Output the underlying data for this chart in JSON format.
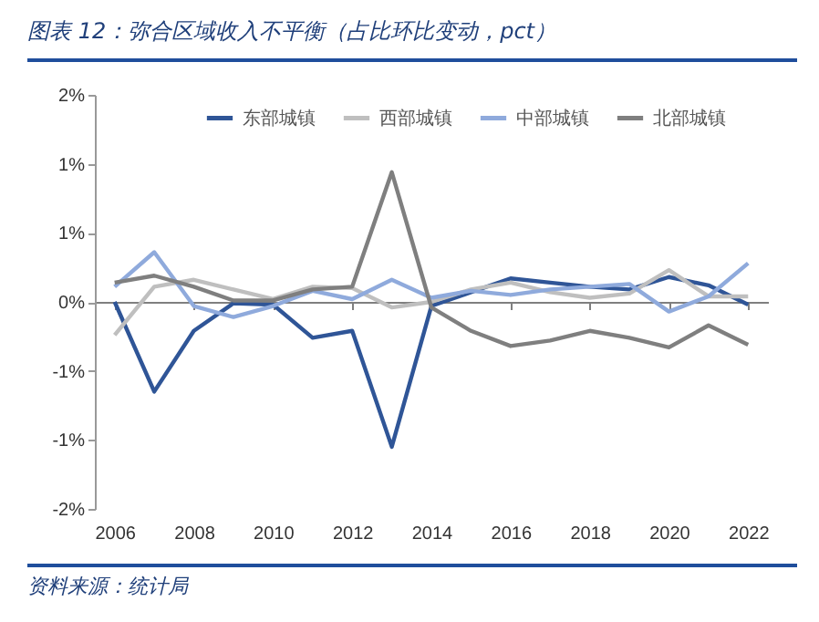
{
  "chart_data": {
    "type": "line",
    "title": "图表 12：弥合区域收入不平衡（占比环比变动，pct）",
    "annotations": [
      "资料来源：统计局"
    ],
    "x": [
      2006,
      2007,
      2008,
      2009,
      2010,
      2011,
      2012,
      2013,
      2014,
      2015,
      2016,
      2017,
      2018,
      2019,
      2020,
      2021,
      2022
    ],
    "xlim": [
      2005.5,
      2022.5
    ],
    "xticks": [
      2006,
      2008,
      2010,
      2012,
      2014,
      2016,
      2018,
      2020,
      2022
    ],
    "ylim": [
      -1.5,
      1.5
    ],
    "yticks": [
      {
        "value": 1.5,
        "label": "2%"
      },
      {
        "value": 1,
        "label": "1%"
      },
      {
        "value": 0.5,
        "label": "1%"
      },
      {
        "value": 0,
        "label": "0%"
      },
      {
        "value": -0.5,
        "label": "-1%"
      },
      {
        "value": -1,
        "label": "-1%"
      },
      {
        "value": -1.5,
        "label": "-2%"
      }
    ],
    "legend": "top",
    "series": [
      {
        "name": "东部城镇",
        "color": "#2f5597",
        "values": [
          0.0,
          -0.65,
          -0.21,
          -0.01,
          -0.02,
          -0.26,
          -0.21,
          -1.05,
          -0.03,
          0.07,
          0.17,
          0.14,
          0.11,
          0.09,
          0.18,
          0.12,
          -0.02
        ]
      },
      {
        "name": "西部城镇",
        "color": "#bfbfbf",
        "values": [
          -0.24,
          0.11,
          0.16,
          0.09,
          0.02,
          0.11,
          0.1,
          -0.04,
          0.0,
          0.09,
          0.14,
          0.07,
          0.03,
          0.06,
          0.23,
          0.04,
          0.04
        ]
      },
      {
        "name": "中部城镇",
        "color": "#8faadc",
        "values": [
          0.11,
          0.36,
          -0.03,
          -0.11,
          -0.03,
          0.08,
          0.02,
          0.16,
          0.03,
          0.08,
          0.05,
          0.09,
          0.11,
          0.13,
          -0.07,
          0.04,
          0.28
        ]
      },
      {
        "name": "北部城镇",
        "color": "#7f7f7f",
        "values": [
          0.14,
          0.19,
          0.11,
          0.01,
          0.01,
          0.09,
          0.11,
          0.94,
          -0.04,
          -0.21,
          -0.32,
          -0.28,
          -0.21,
          -0.26,
          -0.33,
          -0.17,
          -0.31
        ]
      }
    ]
  }
}
